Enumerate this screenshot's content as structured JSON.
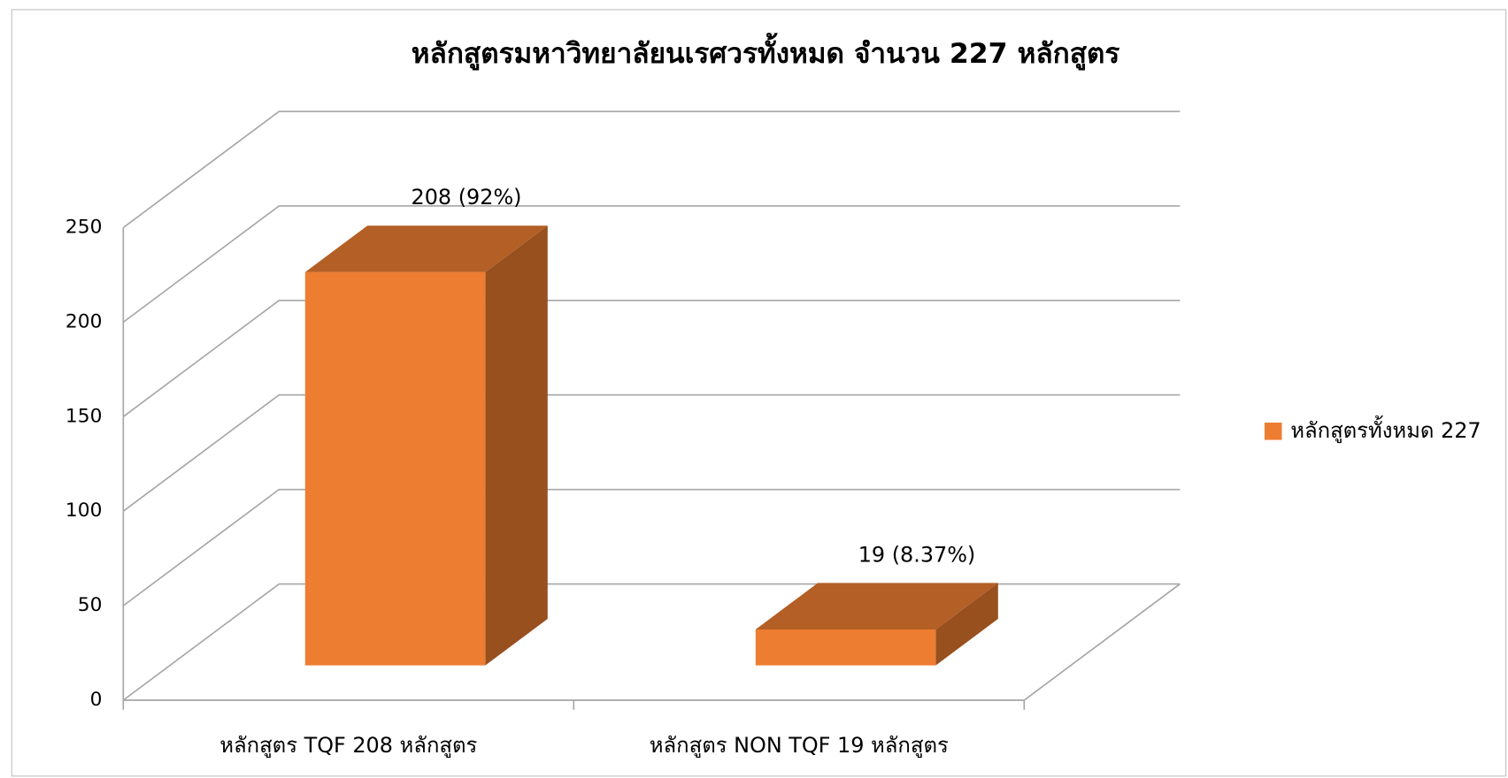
{
  "chart_data": {
    "type": "bar3d",
    "title": "หลักสูตรมหาวิทยาลัยนเรศวรทั้งหมด จำนวน 227 หลักสูตร",
    "categories": [
      "หลักสูตร TQF  208 หลักสูตร",
      "หลักสูตร NON TQF   19 หลักสูตร"
    ],
    "series": [
      {
        "name": "หลักสูตรทั้งหมด 227",
        "color": "#ed7d31",
        "values": [
          208,
          19
        ],
        "value_labels": [
          "208 (92%)",
          "19 (8.37%)"
        ]
      }
    ],
    "ylim": [
      0,
      250
    ],
    "yticks": [
      0,
      50,
      100,
      150,
      200,
      250
    ],
    "grid": true,
    "legend": "right"
  }
}
